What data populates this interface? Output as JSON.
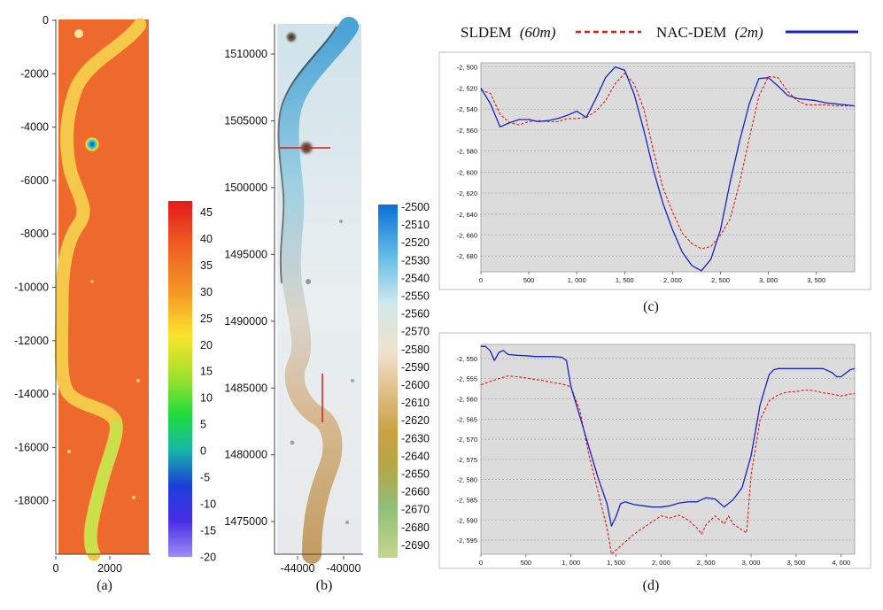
{
  "legend": {
    "sldem_name": "SLDEM",
    "sldem_res": "(60m)",
    "nac_name": "NAC-DEM",
    "nac_res": "(2m)",
    "sldem_color": "#e01818",
    "nac_color": "#1a22c4"
  },
  "panel_a": {
    "caption": "(a)",
    "y_ticks": [
      "0",
      "-2000",
      "-4000",
      "-6000",
      "-8000",
      "-10000",
      "-12000",
      "-14000",
      "-16000",
      "-18000"
    ],
    "x_ticks": [
      "0",
      "2000"
    ],
    "colorbar_ticks": [
      "45",
      "40",
      "35",
      "30",
      "25",
      "20",
      "15",
      "10",
      "5",
      "0",
      "-5",
      "-10",
      "-15",
      "-20"
    ],
    "background_color": "#ee6a2c",
    "channel_color": "#f6c84a"
  },
  "panel_b": {
    "caption": "(b)",
    "y_ticks": [
      "1510000",
      "1505000",
      "1500000",
      "1495000",
      "1490000",
      "1485000",
      "1480000",
      "1475000"
    ],
    "x_ticks": [
      "-44000",
      "-40000"
    ],
    "colorbar_ticks": [
      "-2500",
      "-2510",
      "-2520",
      "-2530",
      "-2540",
      "-2550",
      "-2560",
      "-2570",
      "-2580",
      "-2590",
      "-2600",
      "-2610",
      "-2620",
      "-2630",
      "-2640",
      "-2650",
      "-2660",
      "-2670",
      "-2680",
      "-2690"
    ],
    "profile_line_color": "#e01818"
  },
  "chart_data": [
    {
      "type": "line",
      "panel": "(c)",
      "caption": "(c)",
      "xlim": [
        0,
        3900
      ],
      "ylim": [
        -2.695,
        -2.496
      ],
      "x_ticks": [
        0,
        500,
        1000,
        1500,
        2000,
        2500,
        3000,
        3500
      ],
      "x_tick_labels": [
        "0",
        "500",
        "1, 000",
        "1, 500",
        "2, 000",
        "2, 500",
        "3, 000",
        "3, 500"
      ],
      "y_ticks": [
        -2.5,
        -2.52,
        -2.54,
        -2.56,
        -2.58,
        -2.6,
        -2.62,
        -2.64,
        -2.66,
        -2.68
      ],
      "y_tick_labels": [
        "-2, 500",
        "-2, 520",
        "-2, 540",
        "-2, 560",
        "-2, 580",
        "-2, 600",
        "-2, 620",
        "-2, 640",
        "-2, 660",
        "-2, 680"
      ],
      "grid": true,
      "series": [
        {
          "name": "SLDEM (60m)",
          "style": "dashed",
          "color": "#e01818",
          "x": [
            0,
            100,
            200,
            300,
            400,
            500,
            600,
            700,
            800,
            900,
            1000,
            1100,
            1200,
            1300,
            1400,
            1500,
            1600,
            1700,
            1800,
            1900,
            2000,
            2100,
            2200,
            2300,
            2400,
            2500,
            2600,
            2700,
            2800,
            2900,
            3000,
            3100,
            3200,
            3300,
            3400,
            3500,
            3600,
            3700,
            3800,
            3900
          ],
          "y": [
            -2.522,
            -2.525,
            -2.545,
            -2.553,
            -2.555,
            -2.552,
            -2.551,
            -2.552,
            -2.552,
            -2.549,
            -2.549,
            -2.548,
            -2.542,
            -2.532,
            -2.516,
            -2.506,
            -2.516,
            -2.54,
            -2.58,
            -2.615,
            -2.638,
            -2.658,
            -2.668,
            -2.673,
            -2.671,
            -2.66,
            -2.645,
            -2.61,
            -2.568,
            -2.528,
            -2.509,
            -2.51,
            -2.523,
            -2.532,
            -2.536,
            -2.536,
            -2.536,
            -2.537,
            -2.537,
            -2.537
          ]
        },
        {
          "name": "NAC-DEM (2m)",
          "style": "solid",
          "color": "#1a22c4",
          "x": [
            0,
            100,
            200,
            300,
            400,
            500,
            600,
            700,
            800,
            900,
            1000,
            1100,
            1200,
            1300,
            1400,
            1500,
            1600,
            1700,
            1800,
            1900,
            2000,
            2100,
            2200,
            2300,
            2400,
            2500,
            2600,
            2700,
            2800,
            2900,
            3000,
            3100,
            3200,
            3300,
            3400,
            3500,
            3600,
            3700,
            3800,
            3900
          ],
          "y": [
            -2.52,
            -2.535,
            -2.557,
            -2.553,
            -2.55,
            -2.55,
            -2.552,
            -2.551,
            -2.549,
            -2.546,
            -2.542,
            -2.548,
            -2.53,
            -2.51,
            -2.5,
            -2.503,
            -2.526,
            -2.56,
            -2.598,
            -2.63,
            -2.655,
            -2.676,
            -2.689,
            -2.694,
            -2.683,
            -2.655,
            -2.61,
            -2.57,
            -2.535,
            -2.511,
            -2.51,
            -2.518,
            -2.527,
            -2.53,
            -2.531,
            -2.532,
            -2.534,
            -2.535,
            -2.536,
            -2.537
          ]
        }
      ]
    },
    {
      "type": "line",
      "panel": "(d)",
      "caption": "(d)",
      "xlim": [
        0,
        4150
      ],
      "ylim": [
        -2.5985,
        -2.5465
      ],
      "x_ticks": [
        0,
        500,
        1000,
        1500,
        2000,
        2500,
        3000,
        3500,
        4000
      ],
      "x_tick_labels": [
        "0",
        "500",
        "1, 000",
        "1, 500",
        "2, 000",
        "2, 500",
        "3, 000",
        "3, 500",
        "4, 000"
      ],
      "y_ticks": [
        -2.55,
        -2.555,
        -2.56,
        -2.565,
        -2.57,
        -2.575,
        -2.58,
        -2.585,
        -2.59,
        -2.595
      ],
      "y_tick_labels": [
        "-2, 550",
        "-2, 555",
        "-2, 560",
        "-2, 565",
        "-2, 570",
        "-2, 575",
        "-2, 580",
        "-2, 585",
        "-2, 590",
        "-2, 595"
      ],
      "grid": true,
      "series": [
        {
          "name": "SLDEM (60m)",
          "style": "dashed",
          "color": "#e01818",
          "x": [
            0,
            100,
            200,
            300,
            400,
            500,
            600,
            700,
            800,
            900,
            1000,
            1100,
            1200,
            1300,
            1400,
            1450,
            1500,
            1600,
            1700,
            1800,
            1900,
            2000,
            2100,
            2200,
            2300,
            2400,
            2450,
            2500,
            2600,
            2700,
            2750,
            2800,
            2900,
            2950,
            3000,
            3100,
            3200,
            3300,
            3400,
            3500,
            3600,
            3700,
            3800,
            3900,
            4000,
            4100,
            4150
          ],
          "y": [
            -2.5565,
            -2.5557,
            -2.555,
            -2.5543,
            -2.5545,
            -2.5548,
            -2.5552,
            -2.5555,
            -2.556,
            -2.5563,
            -2.557,
            -2.563,
            -2.574,
            -2.583,
            -2.592,
            -2.5985,
            -2.5975,
            -2.5955,
            -2.5935,
            -2.592,
            -2.5905,
            -2.589,
            -2.5895,
            -2.5888,
            -2.59,
            -2.592,
            -2.5935,
            -2.5912,
            -2.589,
            -2.591,
            -2.589,
            -2.591,
            -2.5925,
            -2.5932,
            -2.5788,
            -2.5652,
            -2.5605,
            -2.559,
            -2.5583,
            -2.5582,
            -2.5578,
            -2.558,
            -2.5585,
            -2.5588,
            -2.5593,
            -2.5588,
            -2.5587
          ]
        },
        {
          "name": "NAC-DEM (2m)",
          "style": "solid",
          "color": "#1a22c4",
          "x": [
            0,
            50,
            100,
            150,
            200,
            250,
            300,
            400,
            500,
            600,
            700,
            800,
            900,
            950,
            1000,
            1100,
            1200,
            1300,
            1400,
            1450,
            1500,
            1550,
            1600,
            1700,
            1800,
            1900,
            2000,
            2100,
            2200,
            2300,
            2400,
            2500,
            2600,
            2700,
            2800,
            2900,
            3000,
            3100,
            3200,
            3250,
            3300,
            3400,
            3500,
            3600,
            3700,
            3800,
            3900,
            3950,
            4000,
            4100,
            4150
          ],
          "y": [
            -2.547,
            -2.547,
            -2.548,
            -2.5505,
            -2.5485,
            -2.548,
            -2.549,
            -2.5492,
            -2.5493,
            -2.5495,
            -2.5495,
            -2.5495,
            -2.5497,
            -2.5505,
            -2.557,
            -2.5645,
            -2.572,
            -2.5795,
            -2.586,
            -2.5915,
            -2.5892,
            -2.586,
            -2.5855,
            -2.5862,
            -2.5865,
            -2.5868,
            -2.5868,
            -2.5865,
            -2.5858,
            -2.5855,
            -2.5855,
            -2.5845,
            -2.5848,
            -2.5868,
            -2.585,
            -2.582,
            -2.574,
            -2.5615,
            -2.554,
            -2.5528,
            -2.5525,
            -2.5525,
            -2.5525,
            -2.5525,
            -2.5525,
            -2.5525,
            -2.5535,
            -2.5545,
            -2.5545,
            -2.5528,
            -2.5525
          ]
        }
      ]
    }
  ]
}
